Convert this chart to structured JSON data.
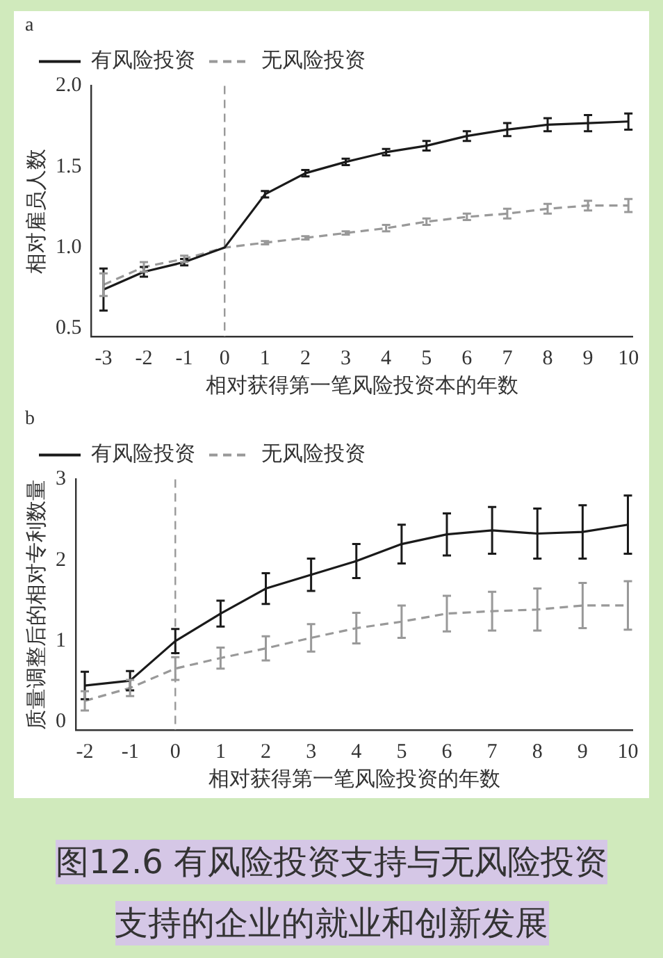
{
  "chart_data": [
    {
      "type": "line",
      "title": "a",
      "xlabel": "相对获得第一笔风险投资本的年数",
      "ylabel": "相对雇员人数",
      "x": [
        -3,
        -2,
        -1,
        0,
        1,
        2,
        3,
        4,
        5,
        6,
        7,
        8,
        9,
        10
      ],
      "xlim": [
        -3.3,
        10.1
      ],
      "xticks": [
        -3,
        -2,
        -1,
        0,
        1,
        2,
        3,
        4,
        5,
        6,
        7,
        8,
        9,
        10
      ],
      "ylim": [
        0.45,
        2.0
      ],
      "yticks": [
        {
          "value": 0.5,
          "label": "0.5"
        },
        {
          "value": 1,
          "label": "1.0"
        },
        {
          "value": 1.5,
          "label": "1.5"
        },
        {
          "value": 2,
          "label": "2.0"
        }
      ],
      "series": [
        {
          "name": "有风险投资",
          "color": "#1a1a1a",
          "line_style": "solid",
          "values": [
            0.74,
            0.85,
            0.91,
            1.0,
            1.33,
            1.46,
            1.53,
            1.59,
            1.63,
            1.69,
            1.73,
            1.76,
            1.77,
            1.78
          ],
          "errors": [
            0.13,
            0.03,
            0.02,
            null,
            0.02,
            0.02,
            0.02,
            0.02,
            0.03,
            0.03,
            0.04,
            0.04,
            0.05,
            0.05
          ]
        },
        {
          "name": "无风险投资",
          "color": "#999999",
          "line_style": "dashed",
          "values": [
            0.77,
            0.88,
            0.93,
            1.0,
            1.03,
            1.06,
            1.09,
            1.12,
            1.16,
            1.19,
            1.21,
            1.24,
            1.26,
            1.26
          ],
          "errors": [
            0.07,
            0.03,
            0.02,
            null,
            0.01,
            0.01,
            0.01,
            0.02,
            0.02,
            0.02,
            0.03,
            0.03,
            0.03,
            0.04
          ]
        }
      ],
      "ref_lines": [
        {
          "axis": "x",
          "value": 0,
          "color": "#999999",
          "line_style": "dashed"
        }
      ],
      "legend": "top left",
      "grid": false
    },
    {
      "type": "line",
      "title": "b",
      "xlabel": "相对获得第一笔风险投资的年数",
      "ylabel": "质量调整后的相对专利数量",
      "x": [
        -2,
        -1,
        0,
        1,
        2,
        3,
        4,
        5,
        6,
        7,
        8,
        9,
        10
      ],
      "xlim": [
        -2.2,
        10.1
      ],
      "xticks": [
        -2,
        -1,
        0,
        1,
        2,
        3,
        4,
        5,
        6,
        7,
        8,
        9,
        10
      ],
      "ylim": [
        -0.1,
        3
      ],
      "yticks": [
        0,
        1,
        2,
        3
      ],
      "series": [
        {
          "name": "有风险投资",
          "color": "#1a1a1a",
          "line_style": "solid",
          "values": [
            0.45,
            0.51,
            1.0,
            1.34,
            1.65,
            1.82,
            1.99,
            2.2,
            2.32,
            2.37,
            2.33,
            2.35,
            2.44
          ],
          "errors": [
            0.17,
            0.12,
            0.15,
            0.16,
            0.19,
            0.2,
            0.21,
            0.24,
            0.26,
            0.29,
            0.31,
            0.33,
            0.36
          ]
        },
        {
          "name": "无风险投资",
          "color": "#999999",
          "line_style": "dashed",
          "values": [
            0.26,
            0.42,
            0.66,
            0.79,
            0.91,
            1.04,
            1.16,
            1.24,
            1.34,
            1.37,
            1.39,
            1.44,
            1.44
          ],
          "errors": [
            0.12,
            0.1,
            0.14,
            0.13,
            0.15,
            0.17,
            0.19,
            0.2,
            0.22,
            0.24,
            0.26,
            0.28,
            0.3
          ]
        }
      ],
      "ref_lines": [
        {
          "axis": "x",
          "value": 0,
          "color": "#999999",
          "line_style": "dashed"
        }
      ],
      "legend": "top left",
      "grid": false,
      "annotations": [
        "图12.6 有风险投资支持与无风险投资支持的企业的就业和创新发展"
      ]
    }
  ]
}
